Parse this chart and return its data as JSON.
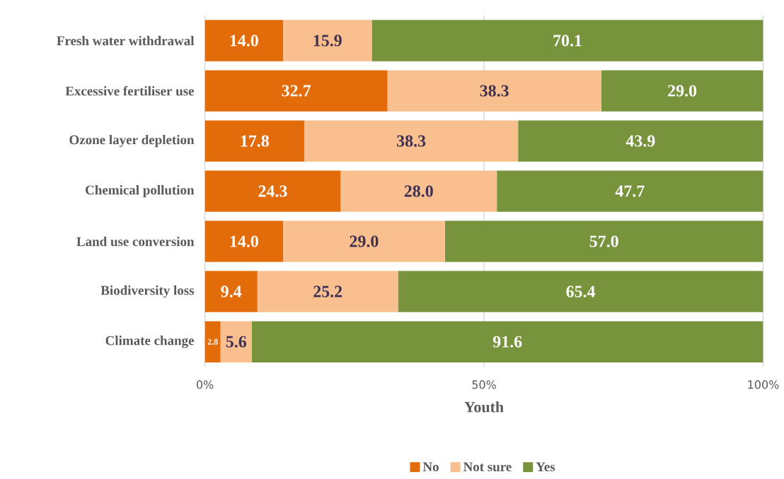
{
  "chart_data": {
    "type": "bar",
    "orientation": "horizontal",
    "stacked": true,
    "categories": [
      "Fresh water withdrawal",
      "Excessive fertiliser use",
      "Ozone layer depletion",
      "Chemical pollution",
      "Land use conversion",
      "Biodiversity loss",
      "Climate change"
    ],
    "series": [
      {
        "name": "No",
        "color": "#e36c0a",
        "values": [
          14.0,
          32.7,
          17.8,
          24.3,
          14.0,
          9.4,
          2.8
        ],
        "value_labels": [
          "14.0",
          "32.7",
          "17.8",
          "24.3",
          "14.0",
          "9.4",
          "2.8"
        ]
      },
      {
        "name": "Not sure",
        "color": "#f9bf8f",
        "values": [
          15.9,
          38.3,
          38.3,
          28.0,
          29.0,
          25.2,
          5.6
        ],
        "value_labels": [
          "15.9",
          "38.3",
          "38.3",
          "28.0",
          "29.0",
          "25.2",
          "5.6"
        ]
      },
      {
        "name": "Yes",
        "color": "#77933c",
        "values": [
          70.1,
          29.0,
          43.9,
          47.7,
          57.0,
          65.4,
          91.6
        ],
        "value_labels": [
          "70.1",
          "29.0",
          "43.9",
          "47.7",
          "57.0",
          "65.4",
          "91.6"
        ]
      }
    ],
    "xlabel": "Youth",
    "xlim": [
      0,
      100
    ],
    "xticks": [
      {
        "value": 0,
        "label": "0%"
      },
      {
        "value": 50,
        "label": "50%"
      },
      {
        "value": 100,
        "label": "100%"
      }
    ],
    "grid": "x",
    "legend": "bottom"
  }
}
